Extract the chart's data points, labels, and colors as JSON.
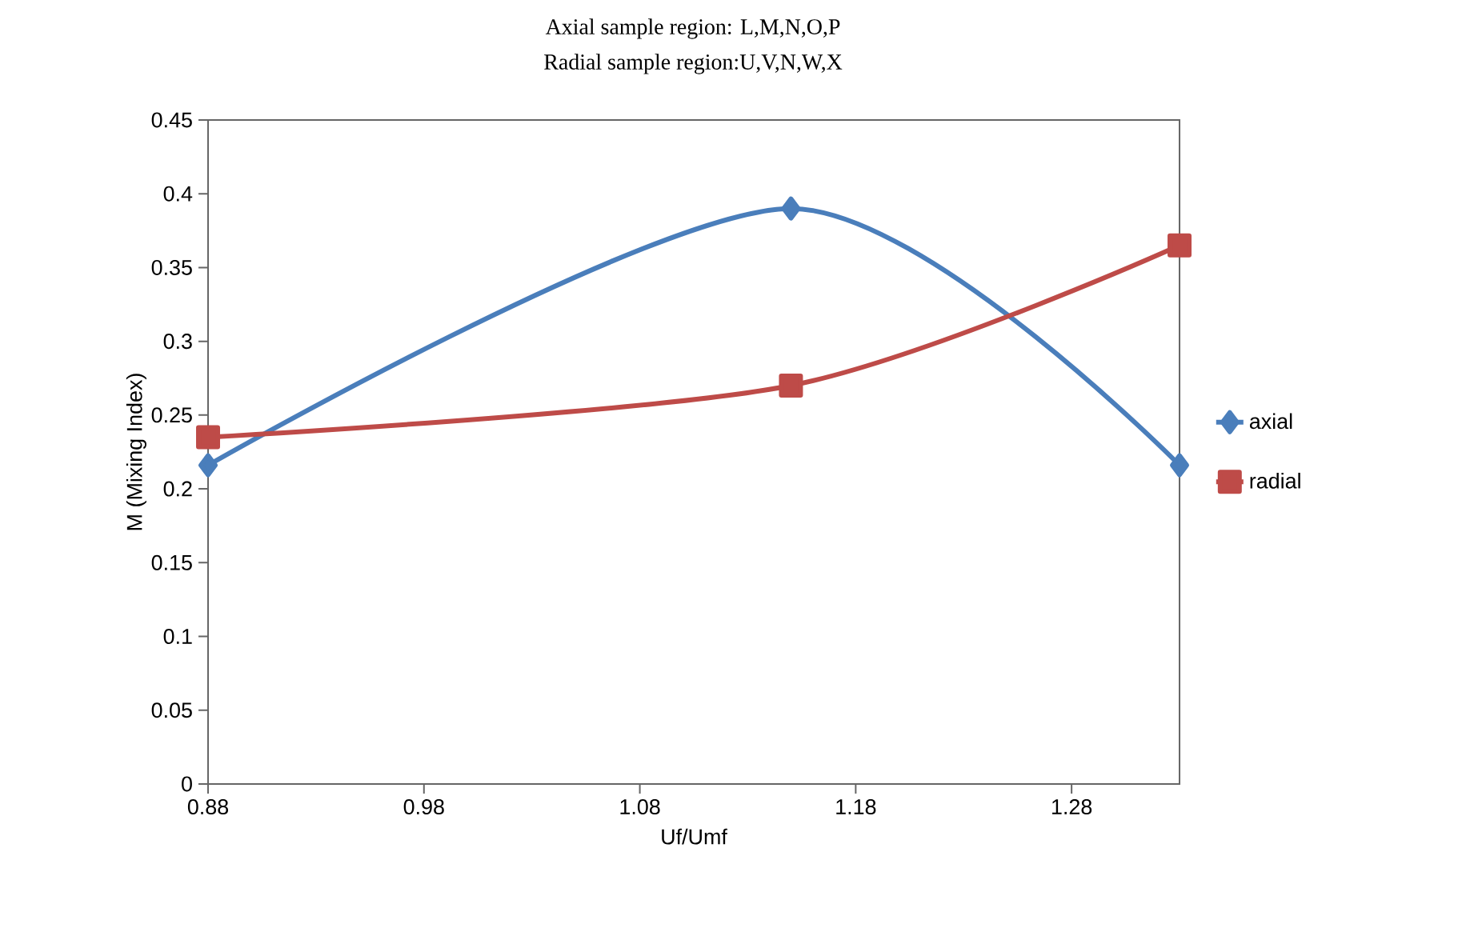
{
  "chart_data": {
    "type": "line",
    "title": "Axial sample region: L,M,N,O,P",
    "subtitle": "Radial sample region:U,V,N,W,X",
    "xlabel": "Uf/Umf",
    "ylabel": "M (Mixing Index)",
    "x": [
      0.88,
      1.15,
      1.33
    ],
    "series": [
      {
        "name": "axial",
        "color": "#4a7ebb",
        "marker": "diamond",
        "values": [
          0.216,
          0.39,
          0.216
        ]
      },
      {
        "name": "radial",
        "color": "#be4b48",
        "marker": "square",
        "values": [
          0.235,
          0.27,
          0.365
        ]
      }
    ],
    "xlim": [
      0.88,
      1.33
    ],
    "xticks": [
      0.88,
      0.98,
      1.08,
      1.18,
      1.28
    ],
    "ylim": [
      0,
      0.45
    ],
    "yticks": [
      0,
      0.05,
      0.1,
      0.15,
      0.2,
      0.25,
      0.3,
      0.35,
      0.4,
      0.45
    ],
    "grid": false,
    "legend": "right",
    "line_style": "solid"
  }
}
